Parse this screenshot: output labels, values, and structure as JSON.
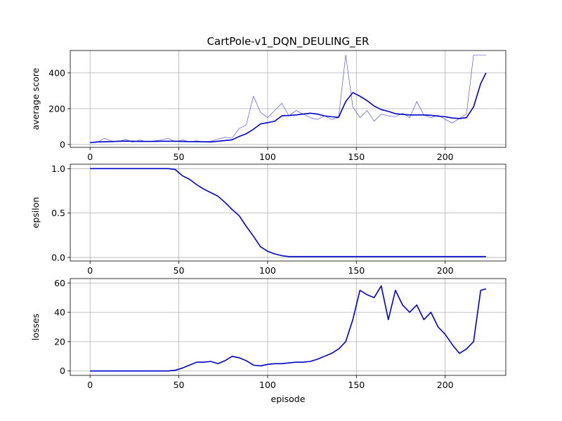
{
  "chart_data": [
    {
      "type": "line",
      "title": "CartPole-v1_DQN_DEULING_ER",
      "y_label": "average score",
      "x": [
        0,
        4,
        8,
        12,
        16,
        20,
        24,
        28,
        32,
        36,
        40,
        44,
        48,
        52,
        56,
        60,
        64,
        68,
        72,
        76,
        80,
        84,
        88,
        92,
        96,
        100,
        104,
        108,
        112,
        116,
        120,
        124,
        128,
        132,
        136,
        140,
        144,
        148,
        152,
        156,
        160,
        164,
        168,
        172,
        176,
        180,
        184,
        188,
        192,
        196,
        200,
        204,
        208,
        212,
        216,
        220,
        223
      ],
      "series": [
        {
          "color": "#3a3ae0",
          "line_width": 0.6,
          "values": [
            10,
            12,
            35,
            20,
            15,
            30,
            12,
            25,
            15,
            20,
            25,
            35,
            15,
            25,
            15,
            20,
            15,
            18,
            30,
            40,
            35,
            90,
            110,
            270,
            180,
            150,
            190,
            230,
            160,
            190,
            170,
            150,
            140,
            160,
            140,
            150,
            500,
            210,
            150,
            190,
            130,
            170,
            160,
            155,
            175,
            150,
            240,
            165,
            150,
            165,
            140,
            120,
            145,
            170,
            500,
            500,
            500
          ]
        },
        {
          "color": "#0000cd",
          "line_width": 1.6,
          "values": [
            10,
            14,
            15,
            16,
            18,
            19,
            18,
            17,
            17,
            17,
            18,
            18,
            18,
            17,
            16,
            16,
            15,
            14,
            18,
            22,
            26,
            45,
            60,
            85,
            115,
            122,
            130,
            160,
            162,
            165,
            170,
            175,
            170,
            160,
            155,
            152,
            240,
            290,
            270,
            245,
            215,
            195,
            185,
            172,
            168,
            165,
            165,
            165,
            163,
            158,
            155,
            148,
            145,
            150,
            210,
            340,
            400
          ]
        }
      ],
      "xlim": [
        -11.15,
        234.15
      ],
      "ylim": [
        -16,
        525
      ],
      "xticks": [
        0,
        50,
        100,
        150,
        200
      ],
      "yticks": [
        0,
        200,
        400
      ],
      "grid": true
    },
    {
      "type": "line",
      "y_label": "epsilon",
      "x": [
        0,
        4,
        8,
        12,
        16,
        20,
        24,
        28,
        32,
        36,
        40,
        44,
        48,
        52,
        56,
        60,
        64,
        68,
        72,
        76,
        80,
        84,
        88,
        92,
        96,
        100,
        104,
        108,
        112,
        116,
        120,
        124,
        128,
        132,
        136,
        140,
        144,
        148,
        152,
        156,
        160,
        164,
        168,
        172,
        176,
        180,
        184,
        188,
        192,
        196,
        200,
        204,
        208,
        212,
        216,
        220,
        223
      ],
      "series": [
        {
          "color": "#0000cd",
          "line_width": 1.6,
          "values": [
            1,
            1,
            1,
            1,
            1,
            1,
            1,
            1,
            1,
            1,
            1,
            1,
            0.99,
            0.92,
            0.88,
            0.82,
            0.77,
            0.73,
            0.69,
            0.62,
            0.54,
            0.47,
            0.35,
            0.24,
            0.12,
            0.07,
            0.04,
            0.02,
            0.01,
            0.01,
            0.01,
            0.01,
            0.01,
            0.01,
            0.01,
            0.01,
            0.01,
            0.01,
            0.01,
            0.01,
            0.01,
            0.01,
            0.01,
            0.01,
            0.01,
            0.01,
            0.01,
            0.01,
            0.01,
            0.01,
            0.01,
            0.01,
            0.01,
            0.01,
            0.01,
            0.01,
            0.01
          ]
        }
      ],
      "xlim": [
        -11.15,
        234.15
      ],
      "ylim": [
        -0.04,
        1.05
      ],
      "xticks": [
        0,
        50,
        100,
        150,
        200
      ],
      "yticks": [
        {
          "value": 0,
          "label": "0.0"
        },
        0.5,
        {
          "value": 1,
          "label": "1.0"
        }
      ],
      "grid": true
    },
    {
      "type": "line",
      "y_label": "losses",
      "x_label": "episode",
      "x": [
        0,
        4,
        8,
        12,
        16,
        20,
        24,
        28,
        32,
        36,
        40,
        44,
        48,
        52,
        56,
        60,
        64,
        68,
        72,
        76,
        80,
        84,
        88,
        92,
        96,
        100,
        104,
        108,
        112,
        116,
        120,
        124,
        128,
        132,
        136,
        140,
        144,
        148,
        152,
        156,
        160,
        164,
        168,
        172,
        176,
        180,
        184,
        188,
        192,
        196,
        200,
        204,
        208,
        212,
        216,
        220,
        223
      ],
      "series": [
        {
          "color": "#0000cd",
          "line_width": 1.6,
          "values": [
            0,
            0,
            0,
            0,
            0,
            0,
            0,
            0,
            0,
            0,
            0,
            0,
            0.5,
            2,
            4,
            6,
            6,
            6.5,
            5,
            7,
            10,
            9,
            7,
            4,
            3.5,
            4.5,
            5,
            5,
            5.5,
            6,
            6,
            6.5,
            8,
            10,
            12,
            15,
            20,
            35,
            55,
            52,
            50,
            58,
            35,
            55,
            45,
            40,
            45,
            35,
            40,
            30,
            25,
            18,
            12,
            15,
            20,
            55,
            56
          ]
        }
      ],
      "xlim": [
        -11.15,
        234.15
      ],
      "ylim": [
        -3,
        63
      ],
      "xticks": [
        0,
        50,
        100,
        150,
        200
      ],
      "yticks": [
        0,
        20,
        40,
        60
      ],
      "grid": true
    }
  ]
}
